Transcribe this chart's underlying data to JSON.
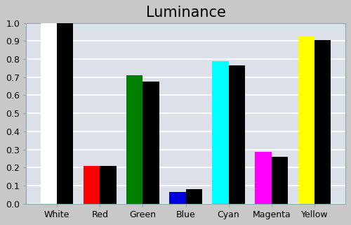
{
  "title": "Luminance",
  "categories": [
    "White",
    "Red",
    "Green",
    "Blue",
    "Cyan",
    "Magenta",
    "Yellow"
  ],
  "measured_values": [
    1.0,
    0.21,
    0.71,
    0.065,
    0.79,
    0.285,
    0.925
  ],
  "reference_values": [
    1.0,
    0.21,
    0.675,
    0.08,
    0.765,
    0.26,
    0.905
  ],
  "measured_colors": [
    "#ffffff",
    "#ff0000",
    "#008000",
    "#0000dd",
    "#00ffff",
    "#ff00ff",
    "#ffff00"
  ],
  "reference_color": "#000000",
  "ylim": [
    0.0,
    1.0
  ],
  "yticks": [
    0.0,
    0.1,
    0.2,
    0.3,
    0.4,
    0.5,
    0.6,
    0.7,
    0.8,
    0.9,
    1.0
  ],
  "background_color": "#c8c8c8",
  "plot_background": "#dce0e8",
  "grid_color": "#ffffff",
  "title_fontsize": 15,
  "bar_width": 0.38
}
